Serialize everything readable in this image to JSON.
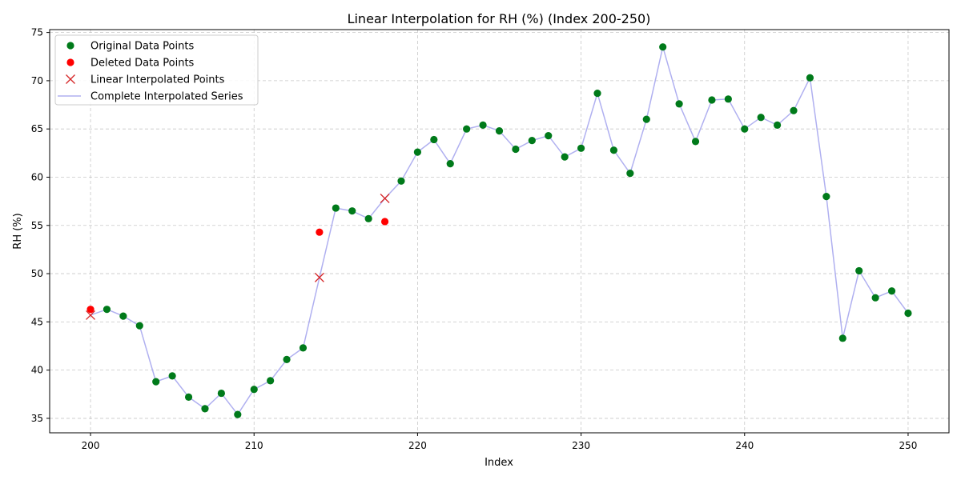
{
  "chart_data": {
    "type": "line",
    "title": "Linear Interpolation for RH (%) (Index 200-250)",
    "xlabel": "Index",
    "ylabel": "RH (%)",
    "xlim": [
      197.5,
      252.5
    ],
    "ylim": [
      33.5,
      75.3
    ],
    "xticks": [
      200,
      210,
      220,
      230,
      240,
      250
    ],
    "yticks": [
      35,
      40,
      45,
      50,
      55,
      60,
      65,
      70,
      75
    ],
    "grid": true,
    "legend_position": "top-left",
    "colors": {
      "original": "#007a1a",
      "deleted": "#ff0000",
      "interpolated": "#d62728",
      "series": "#b0b0f0"
    },
    "legend": [
      {
        "label": "Original Data Points",
        "kind": "original"
      },
      {
        "label": "Deleted Data Points",
        "kind": "deleted"
      },
      {
        "label": "Linear Interpolated Points",
        "kind": "interpolated"
      },
      {
        "label": "Complete Interpolated Series",
        "kind": "series"
      }
    ],
    "series": [
      {
        "name": "Complete Interpolated Series",
        "x": [
          200,
          201,
          202,
          203,
          204,
          205,
          206,
          207,
          208,
          209,
          210,
          211,
          212,
          213,
          214,
          215,
          216,
          217,
          218,
          219,
          220,
          221,
          222,
          223,
          224,
          225,
          226,
          227,
          228,
          229,
          230,
          231,
          232,
          233,
          234,
          235,
          236,
          237,
          238,
          239,
          240,
          241,
          242,
          243,
          244,
          245,
          246,
          247,
          248,
          249,
          250
        ],
        "y": [
          45.7,
          46.3,
          45.6,
          44.6,
          38.8,
          39.4,
          37.2,
          36.0,
          37.6,
          35.4,
          38.0,
          38.9,
          41.1,
          42.3,
          49.6,
          56.8,
          56.5,
          55.7,
          57.8,
          59.6,
          62.6,
          63.9,
          61.4,
          65.0,
          65.4,
          64.8,
          62.9,
          63.8,
          64.3,
          62.1,
          63.0,
          68.7,
          62.8,
          60.4,
          66.0,
          73.5,
          67.6,
          63.7,
          68.0,
          68.1,
          65.0,
          66.2,
          65.4,
          66.9,
          70.3,
          58.0,
          43.3,
          50.3,
          47.5,
          48.2,
          45.9
        ]
      },
      {
        "name": "Original Data Points",
        "x": [
          201,
          202,
          203,
          204,
          205,
          206,
          207,
          208,
          209,
          210,
          211,
          212,
          213,
          215,
          216,
          217,
          219,
          220,
          221,
          222,
          223,
          224,
          225,
          226,
          227,
          228,
          229,
          230,
          231,
          232,
          233,
          234,
          235,
          236,
          237,
          238,
          239,
          240,
          241,
          242,
          243,
          244,
          245,
          246,
          247,
          248,
          249,
          250
        ],
        "y": [
          46.3,
          45.6,
          44.6,
          38.8,
          39.4,
          37.2,
          36.0,
          37.6,
          35.4,
          38.0,
          38.9,
          41.1,
          42.3,
          56.8,
          56.5,
          55.7,
          59.6,
          62.6,
          63.9,
          61.4,
          65.0,
          65.4,
          64.8,
          62.9,
          63.8,
          64.3,
          62.1,
          63.0,
          68.7,
          62.8,
          60.4,
          66.0,
          73.5,
          67.6,
          63.7,
          68.0,
          68.1,
          65.0,
          66.2,
          65.4,
          66.9,
          70.3,
          58.0,
          43.3,
          50.3,
          47.5,
          48.2,
          45.9
        ]
      },
      {
        "name": "Deleted Data Points",
        "x": [
          200,
          214,
          218
        ],
        "y": [
          46.3,
          54.3,
          55.4
        ]
      },
      {
        "name": "Linear Interpolated Points",
        "x": [
          200,
          214,
          218
        ],
        "y": [
          45.7,
          49.6,
          57.8
        ]
      }
    ]
  }
}
